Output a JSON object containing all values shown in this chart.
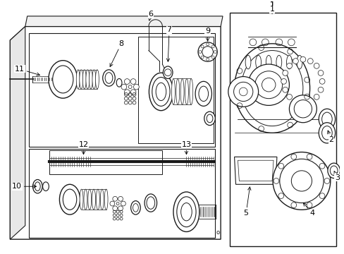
{
  "bg_color": "#ffffff",
  "line_color": "#1a1a1a",
  "font_size": 8,
  "lw": 0.7
}
